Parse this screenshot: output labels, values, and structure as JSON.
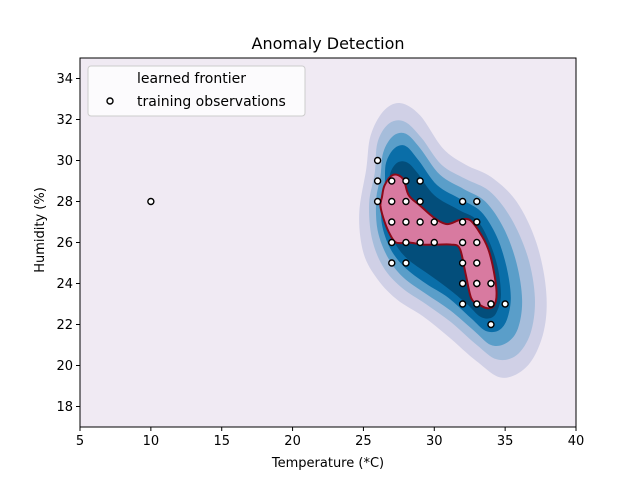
{
  "chart_data": {
    "type": "scatter",
    "title": "Anomaly Detection",
    "xlabel": "Temperature (*C)",
    "ylabel": "Humidity (%)",
    "xlim": [
      5,
      40
    ],
    "ylim": [
      17,
      35
    ],
    "xticks": [
      5,
      10,
      15,
      20,
      25,
      30,
      35,
      40
    ],
    "yticks": [
      18,
      20,
      22,
      24,
      26,
      28,
      30,
      32,
      34
    ],
    "grid": false,
    "legend": {
      "placement": "top-left",
      "entries": [
        {
          "label": "learned frontier",
          "marker": "line",
          "color": "#8b0a1a"
        },
        {
          "label": "training observations",
          "marker": "circle",
          "color": "#000000"
        }
      ]
    },
    "decision_contours": {
      "colormap": "PuBu",
      "background_color": "#f0eaf3",
      "levels": [
        {
          "color": "#d0d0e6",
          "poly": [
            [
              25.2,
              29.6
            ],
            [
              25.5,
              31.2
            ],
            [
              26.4,
              32.4
            ],
            [
              27.6,
              32.8
            ],
            [
              29.0,
              32.2
            ],
            [
              30.6,
              30.6
            ],
            [
              32.2,
              29.8
            ],
            [
              34.0,
              29.2
            ],
            [
              35.8,
              28.0
            ],
            [
              37.2,
              26.0
            ],
            [
              37.9,
              23.6
            ],
            [
              37.7,
              21.6
            ],
            [
              36.6,
              20.0
            ],
            [
              34.8,
              19.4
            ],
            [
              33.0,
              20.2
            ],
            [
              31.0,
              21.4
            ],
            [
              29.2,
              22.4
            ],
            [
              27.4,
              23.2
            ],
            [
              26.0,
              24.2
            ],
            [
              25.0,
              25.5
            ],
            [
              24.7,
              27.4
            ]
          ]
        },
        {
          "color": "#a6bddb",
          "poly": [
            [
              25.8,
              29.4
            ],
            [
              26.0,
              30.9
            ],
            [
              26.8,
              31.8
            ],
            [
              27.9,
              31.9
            ],
            [
              29.1,
              31.1
            ],
            [
              30.5,
              29.8
            ],
            [
              32.2,
              29.1
            ],
            [
              33.9,
              28.5
            ],
            [
              35.4,
              27.2
            ],
            [
              36.6,
              25.3
            ],
            [
              37.1,
              23.3
            ],
            [
              36.8,
              21.6
            ],
            [
              35.8,
              20.5
            ],
            [
              34.4,
              20.3
            ],
            [
              33.0,
              21.0
            ],
            [
              31.2,
              22.1
            ],
            [
              29.4,
              23.0
            ],
            [
              27.7,
              23.8
            ],
            [
              26.4,
              24.8
            ],
            [
              25.6,
              26.2
            ],
            [
              25.4,
              27.9
            ]
          ]
        },
        {
          "color": "#5a9ec9",
          "poly": [
            [
              26.2,
              29.2
            ],
            [
              26.4,
              30.4
            ],
            [
              27.1,
              31.2
            ],
            [
              28.0,
              31.3
            ],
            [
              29.0,
              30.6
            ],
            [
              30.4,
              29.3
            ],
            [
              32.1,
              28.6
            ],
            [
              33.6,
              28.0
            ],
            [
              34.9,
              26.7
            ],
            [
              35.8,
              25.0
            ],
            [
              36.2,
              23.2
            ],
            [
              35.9,
              21.8
            ],
            [
              35.1,
              21.1
            ],
            [
              34.0,
              21.0
            ],
            [
              32.8,
              21.7
            ],
            [
              31.1,
              22.7
            ],
            [
              29.4,
              23.5
            ],
            [
              27.8,
              24.3
            ],
            [
              26.7,
              25.3
            ],
            [
              26.0,
              26.6
            ],
            [
              25.9,
              28.1
            ]
          ]
        },
        {
          "color": "#0a6ea8",
          "poly": [
            [
              26.5,
              28.9
            ],
            [
              26.6,
              29.9
            ],
            [
              27.2,
              30.6
            ],
            [
              28.0,
              30.7
            ],
            [
              28.9,
              30.0
            ],
            [
              30.2,
              28.8
            ],
            [
              31.9,
              28.1
            ],
            [
              33.3,
              27.5
            ],
            [
              34.4,
              26.3
            ],
            [
              35.1,
              24.8
            ],
            [
              35.4,
              23.3
            ],
            [
              35.1,
              22.2
            ],
            [
              34.5,
              21.7
            ],
            [
              33.6,
              21.7
            ],
            [
              32.6,
              22.3
            ],
            [
              31.0,
              23.3
            ],
            [
              29.4,
              24.0
            ],
            [
              27.9,
              24.8
            ],
            [
              26.9,
              25.7
            ],
            [
              26.3,
              26.9
            ],
            [
              26.3,
              28.1
            ]
          ]
        },
        {
          "color": "#034e7b",
          "poly": [
            [
              26.8,
              28.6
            ],
            [
              26.9,
              29.4
            ],
            [
              27.4,
              29.9
            ],
            [
              28.1,
              29.9
            ],
            [
              28.8,
              29.4
            ],
            [
              30.0,
              28.3
            ],
            [
              31.7,
              27.6
            ],
            [
              33.0,
              27.1
            ],
            [
              33.9,
              26.0
            ],
            [
              34.5,
              24.7
            ],
            [
              34.7,
              23.4
            ],
            [
              34.4,
              22.6
            ],
            [
              33.9,
              22.3
            ],
            [
              33.2,
              22.4
            ],
            [
              32.3,
              23.0
            ],
            [
              30.9,
              23.8
            ],
            [
              29.5,
              24.5
            ],
            [
              28.1,
              25.2
            ],
            [
              27.2,
              26.0
            ],
            [
              26.7,
              27.0
            ],
            [
              26.6,
              28.0
            ]
          ]
        }
      ]
    },
    "learned_frontier": {
      "fill": "#d87aa0",
      "stroke": "#8b0a1a",
      "poly": [
        [
          26.3,
          28.2
        ],
        [
          26.5,
          28.8
        ],
        [
          27.1,
          29.3
        ],
        [
          27.8,
          29.1
        ],
        [
          28.2,
          28.3
        ],
        [
          29.0,
          27.8
        ],
        [
          30.0,
          27.2
        ],
        [
          30.9,
          26.9
        ],
        [
          31.8,
          27.1
        ],
        [
          32.5,
          27.1
        ],
        [
          33.2,
          26.5
        ],
        [
          33.8,
          25.7
        ],
        [
          34.2,
          24.6
        ],
        [
          34.4,
          23.5
        ],
        [
          34.2,
          22.9
        ],
        [
          33.7,
          22.8
        ],
        [
          33.1,
          23.0
        ],
        [
          32.6,
          23.3
        ],
        [
          32.2,
          24.5
        ],
        [
          31.8,
          25.7
        ],
        [
          31.2,
          25.9
        ],
        [
          30.2,
          25.9
        ],
        [
          29.2,
          25.9
        ],
        [
          28.2,
          26.0
        ],
        [
          27.3,
          26.0
        ],
        [
          26.8,
          26.5
        ],
        [
          26.4,
          27.2
        ],
        [
          26.2,
          27.8
        ]
      ]
    },
    "series": [
      {
        "name": "training observations",
        "x": [
          10,
          26,
          26,
          26,
          27,
          27,
          27,
          27,
          27,
          28,
          28,
          28,
          28,
          28,
          29,
          29,
          29,
          29,
          30,
          30,
          32,
          32,
          32,
          32,
          32,
          32,
          33,
          33,
          33,
          33,
          33,
          33,
          33,
          34,
          34,
          34,
          34,
          34,
          35
        ],
        "y": [
          28,
          30,
          29,
          28,
          29,
          28,
          27,
          26,
          25,
          29,
          28,
          27,
          26,
          25,
          29,
          28,
          27,
          26,
          27,
          26,
          27,
          26,
          25,
          24,
          23,
          28,
          27,
          26,
          25,
          24,
          23,
          24,
          28,
          24,
          23,
          22,
          23,
          24,
          23
        ]
      }
    ]
  }
}
